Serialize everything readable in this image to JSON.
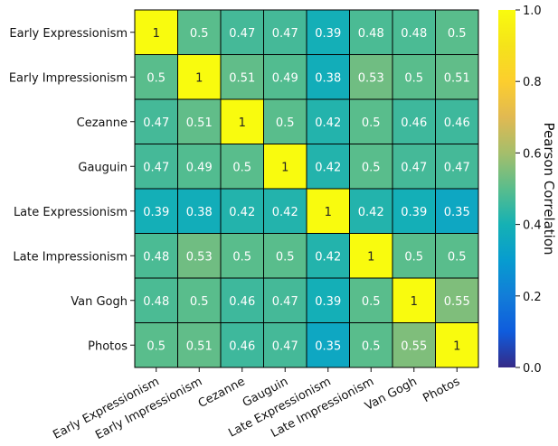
{
  "chart_data": {
    "type": "heatmap",
    "rows": [
      "Early Expressionism",
      "Early Impressionism",
      "Cezanne",
      "Gauguin",
      "Late Expressionism",
      "Late Impressionism",
      "Van Gogh",
      "Photos"
    ],
    "columns": [
      "Early Expressionism",
      "Early Impressionism",
      "Cezanne",
      "Gauguin",
      "Late Expressionism",
      "Late Impressionism",
      "Van Gogh",
      "Photos"
    ],
    "values": [
      [
        1,
        0.5,
        0.47,
        0.47,
        0.39,
        0.48,
        0.48,
        0.5
      ],
      [
        0.5,
        1,
        0.51,
        0.49,
        0.38,
        0.53,
        0.5,
        0.51
      ],
      [
        0.47,
        0.51,
        1,
        0.5,
        0.42,
        0.5,
        0.46,
        0.46
      ],
      [
        0.47,
        0.49,
        0.5,
        1,
        0.42,
        0.5,
        0.47,
        0.47
      ],
      [
        0.39,
        0.38,
        0.42,
        0.42,
        1,
        0.42,
        0.39,
        0.35
      ],
      [
        0.48,
        0.53,
        0.5,
        0.5,
        0.42,
        1,
        0.5,
        0.5
      ],
      [
        0.48,
        0.5,
        0.46,
        0.47,
        0.39,
        0.5,
        1,
        0.55
      ],
      [
        0.5,
        0.51,
        0.46,
        0.47,
        0.35,
        0.5,
        0.55,
        1
      ]
    ],
    "value_labels": [
      [
        "1",
        "0.5",
        "0.47",
        "0.47",
        "0.39",
        "0.48",
        "0.48",
        "0.5"
      ],
      [
        "0.5",
        "1",
        "0.51",
        "0.49",
        "0.38",
        "0.53",
        "0.5",
        "0.51"
      ],
      [
        "0.47",
        "0.51",
        "1",
        "0.5",
        "0.42",
        "0.5",
        "0.46",
        "0.46"
      ],
      [
        "0.47",
        "0.49",
        "0.5",
        "1",
        "0.42",
        "0.5",
        "0.47",
        "0.47"
      ],
      [
        "0.39",
        "0.38",
        "0.42",
        "0.42",
        "1",
        "0.42",
        "0.39",
        "0.35"
      ],
      [
        "0.48",
        "0.53",
        "0.5",
        "0.5",
        "0.42",
        "1",
        "0.5",
        "0.5"
      ],
      [
        "0.48",
        "0.5",
        "0.46",
        "0.47",
        "0.39",
        "0.5",
        "1",
        "0.55"
      ],
      [
        "0.5",
        "0.51",
        "0.46",
        "0.47",
        "0.35",
        "0.5",
        "0.55",
        "1"
      ]
    ],
    "colorbar": {
      "label": "Pearson Correlation",
      "range": [
        0,
        1
      ],
      "ticks": [
        "0.0",
        "0.2",
        "0.4",
        "0.6",
        "0.8",
        "1.0"
      ],
      "colormap": "parula"
    },
    "grid_line_color": "#000000",
    "annotation_text_colors": {
      "low": "#ffffff",
      "high": "#222222"
    }
  }
}
